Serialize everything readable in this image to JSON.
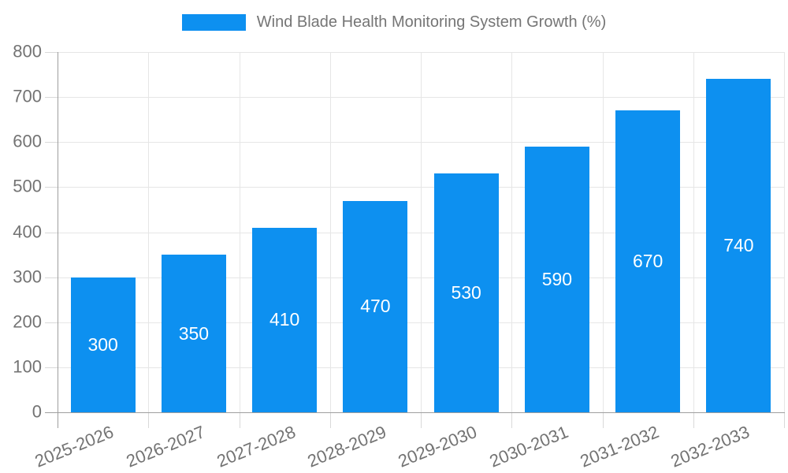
{
  "chart_data": {
    "type": "bar",
    "title": "Wind Blade Health Monitoring System Growth (%)",
    "legend_label": "Wind Blade Health Monitoring System Growth (%)",
    "legend_position": "top",
    "categories": [
      "2025-2026",
      "2026-2027",
      "2027-2028",
      "2028-2029",
      "2029-2030",
      "2030-2031",
      "2031-2032",
      "2032-2033"
    ],
    "values": [
      300,
      350,
      410,
      470,
      530,
      590,
      670,
      740
    ],
    "value_labels": [
      "300",
      "350",
      "410",
      "470",
      "530",
      "590",
      "670",
      "740"
    ],
    "xlabel": "",
    "ylabel": "",
    "ylim": [
      0,
      800
    ],
    "ytick_step": 100,
    "ytick_labels": [
      "0",
      "100",
      "200",
      "300",
      "400",
      "500",
      "600",
      "700",
      "800"
    ],
    "grid": true,
    "value_labels_inside_bars": true,
    "x_label_rotation_deg": -22,
    "colors": {
      "bar": "#0d90f0",
      "value_label": "#ffffff",
      "axis_line": "#9e9e9e",
      "gridline": "#e6e6e6",
      "tick_mark": "#d9d9d9",
      "tick_label": "#737373",
      "legend_text": "#757575",
      "background": "#ffffff"
    }
  }
}
